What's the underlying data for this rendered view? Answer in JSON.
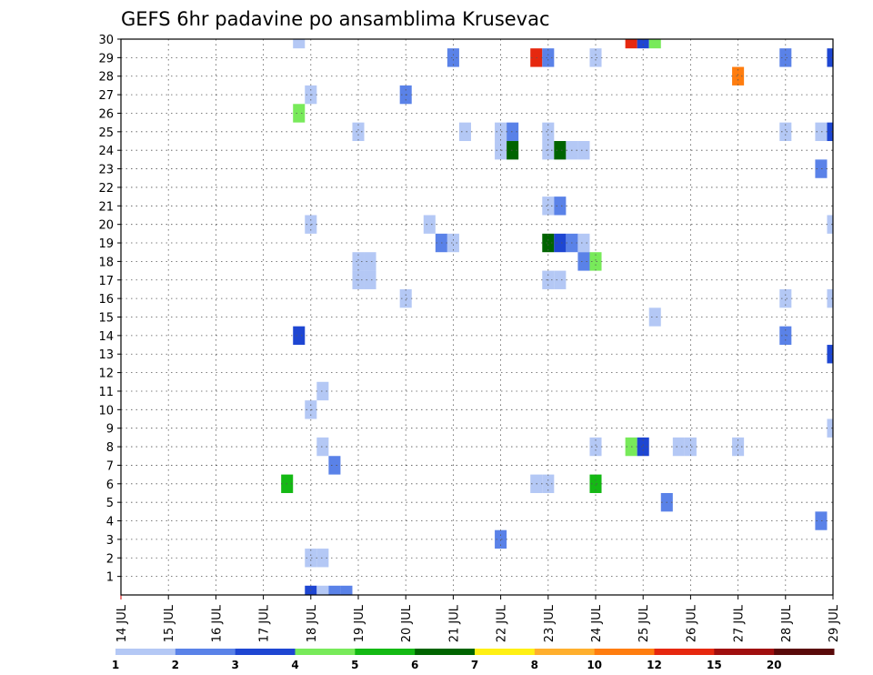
{
  "chart_data": {
    "type": "heatmap",
    "title": "GEFS 6hr padavine po ansamblima Krusevac",
    "xlabel": "",
    "ylabel": "",
    "x_ticks": [
      "14 JUL",
      "15 JUL",
      "16 JUL",
      "17 JUL",
      "18 JUL",
      "19 JUL",
      "20 JUL",
      "21 JUL",
      "22 JUL",
      "23 JUL",
      "24 JUL",
      "25 JUL",
      "26 JUL",
      "27 JUL",
      "28 JUL",
      "29 JUL"
    ],
    "xlim_days": [
      0,
      15
    ],
    "time_step_hours": 6,
    "y_ticks": [
      1,
      2,
      3,
      4,
      5,
      6,
      7,
      8,
      9,
      10,
      11,
      12,
      13,
      14,
      15,
      16,
      17,
      18,
      19,
      20,
      21,
      22,
      23,
      24,
      25,
      26,
      27,
      28,
      29,
      30
    ],
    "ylim": [
      0,
      30
    ],
    "grid": true,
    "colorbar": {
      "position": "bottom",
      "labels": [
        "1",
        "2",
        "3",
        "4",
        "5",
        "6",
        "7",
        "8",
        "10",
        "12",
        "15",
        "20"
      ],
      "colors": [
        "#b4c8f5",
        "#5a82e8",
        "#1e46d2",
        "#78ea5a",
        "#14b914",
        "#006400",
        "#fff014",
        "#ffaf2d",
        "#ff7d0f",
        "#e6280f",
        "#a00f0f",
        "#5a0a0a"
      ]
    },
    "levels": [
      {
        "level": 1,
        "color": "#b4c8f5"
      },
      {
        "level": 2,
        "color": "#5a82e8"
      },
      {
        "level": 3,
        "color": "#1e46d2"
      },
      {
        "level": 4,
        "color": "#78ea5a"
      },
      {
        "level": 5,
        "color": "#14b914"
      },
      {
        "level": 6,
        "color": "#006400"
      },
      {
        "level": 7,
        "color": "#fff014"
      },
      {
        "level": 8,
        "color": "#ffaf2d"
      },
      {
        "level": 10,
        "color": "#ff7d0f"
      },
      {
        "level": 12,
        "color": "#e6280f"
      },
      {
        "level": 15,
        "color": "#a00f0f"
      },
      {
        "level": 20,
        "color": "#5a0a0a"
      }
    ],
    "cells": [
      {
        "day": 3.75,
        "member": 30,
        "level": 1
      },
      {
        "day": 10.75,
        "member": 30,
        "level": 12
      },
      {
        "day": 11.0,
        "member": 30,
        "level": 3
      },
      {
        "day": 11.25,
        "member": 30,
        "level": 4
      },
      {
        "day": 7.0,
        "member": 29,
        "level": 2
      },
      {
        "day": 8.75,
        "member": 29,
        "level": 12
      },
      {
        "day": 9.0,
        "member": 29,
        "level": 2
      },
      {
        "day": 10.0,
        "member": 29,
        "level": 1
      },
      {
        "day": 14.0,
        "member": 29,
        "level": 2
      },
      {
        "day": 15.0,
        "member": 29,
        "level": 3
      },
      {
        "day": 13.0,
        "member": 28,
        "level": 10
      },
      {
        "day": 4.0,
        "member": 27,
        "level": 1
      },
      {
        "day": 6.0,
        "member": 27,
        "level": 2
      },
      {
        "day": 3.75,
        "member": 26,
        "level": 4
      },
      {
        "day": 5.0,
        "member": 25,
        "level": 1
      },
      {
        "day": 7.25,
        "member": 25,
        "level": 1
      },
      {
        "day": 8.0,
        "member": 25,
        "level": 1
      },
      {
        "day": 8.25,
        "member": 25,
        "level": 2
      },
      {
        "day": 9.0,
        "member": 25,
        "level": 1
      },
      {
        "day": 14.0,
        "member": 25,
        "level": 1
      },
      {
        "day": 14.75,
        "member": 25,
        "level": 1
      },
      {
        "day": 15.0,
        "member": 25,
        "level": 3
      },
      {
        "day": 8.0,
        "member": 24,
        "level": 1
      },
      {
        "day": 8.25,
        "member": 24,
        "level": 6
      },
      {
        "day": 9.0,
        "member": 24,
        "level": 1
      },
      {
        "day": 9.25,
        "member": 24,
        "level": 6
      },
      {
        "day": 9.5,
        "member": 24,
        "level": 1
      },
      {
        "day": 9.75,
        "member": 24,
        "level": 1
      },
      {
        "day": 14.75,
        "member": 23,
        "level": 2
      },
      {
        "day": 9.0,
        "member": 21,
        "level": 1
      },
      {
        "day": 9.25,
        "member": 21,
        "level": 2
      },
      {
        "day": 4.0,
        "member": 20,
        "level": 1
      },
      {
        "day": 6.5,
        "member": 20,
        "level": 1
      },
      {
        "day": 15.0,
        "member": 20,
        "level": 1
      },
      {
        "day": 6.75,
        "member": 19,
        "level": 2
      },
      {
        "day": 7.0,
        "member": 19,
        "level": 1
      },
      {
        "day": 9.0,
        "member": 19,
        "level": 6
      },
      {
        "day": 9.25,
        "member": 19,
        "level": 3
      },
      {
        "day": 9.5,
        "member": 19,
        "level": 2
      },
      {
        "day": 9.75,
        "member": 19,
        "level": 1
      },
      {
        "day": 5.0,
        "member": 18,
        "level": 1
      },
      {
        "day": 5.25,
        "member": 18,
        "level": 1
      },
      {
        "day": 9.75,
        "member": 18,
        "level": 2
      },
      {
        "day": 10.0,
        "member": 18,
        "level": 4
      },
      {
        "day": 5.0,
        "member": 17,
        "level": 1
      },
      {
        "day": 5.25,
        "member": 17,
        "level": 1
      },
      {
        "day": 9.0,
        "member": 17,
        "level": 1
      },
      {
        "day": 9.25,
        "member": 17,
        "level": 1
      },
      {
        "day": 6.0,
        "member": 16,
        "level": 1
      },
      {
        "day": 14.0,
        "member": 16,
        "level": 1
      },
      {
        "day": 15.0,
        "member": 16,
        "level": 1
      },
      {
        "day": 11.25,
        "member": 15,
        "level": 1
      },
      {
        "day": 3.75,
        "member": 14,
        "level": 3
      },
      {
        "day": 14.0,
        "member": 14,
        "level": 2
      },
      {
        "day": 15.0,
        "member": 13,
        "level": 3
      },
      {
        "day": 4.25,
        "member": 11,
        "level": 1
      },
      {
        "day": 4.0,
        "member": 10,
        "level": 1
      },
      {
        "day": 15.0,
        "member": 9,
        "level": 1
      },
      {
        "day": 4.25,
        "member": 8,
        "level": 1
      },
      {
        "day": 10.0,
        "member": 8,
        "level": 1
      },
      {
        "day": 10.75,
        "member": 8,
        "level": 4
      },
      {
        "day": 11.0,
        "member": 8,
        "level": 3
      },
      {
        "day": 11.75,
        "member": 8,
        "level": 1
      },
      {
        "day": 12.0,
        "member": 8,
        "level": 1
      },
      {
        "day": 13.0,
        "member": 8,
        "level": 1
      },
      {
        "day": 4.5,
        "member": 7,
        "level": 2
      },
      {
        "day": 3.5,
        "member": 6,
        "level": 5
      },
      {
        "day": 8.75,
        "member": 6,
        "level": 1
      },
      {
        "day": 9.0,
        "member": 6,
        "level": 1
      },
      {
        "day": 10.0,
        "member": 6,
        "level": 5
      },
      {
        "day": 11.5,
        "member": 5,
        "level": 2
      },
      {
        "day": 14.75,
        "member": 4,
        "level": 2
      },
      {
        "day": 8.0,
        "member": 3,
        "level": 2
      },
      {
        "day": 4.0,
        "member": 2,
        "level": 1
      },
      {
        "day": 4.25,
        "member": 2,
        "level": 1
      },
      {
        "day": 4.0,
        "member": 0,
        "level": 3
      },
      {
        "day": 4.25,
        "member": 0,
        "level": 1
      },
      {
        "day": 4.5,
        "member": 0,
        "level": 2
      },
      {
        "day": 4.75,
        "member": 0,
        "level": 2
      }
    ]
  }
}
